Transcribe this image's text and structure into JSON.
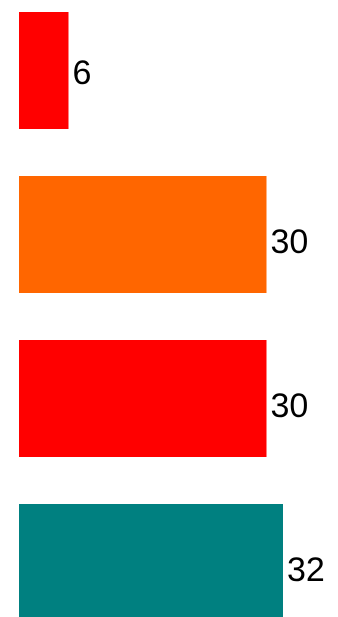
{
  "chart_data": {
    "type": "bar",
    "orientation": "horizontal",
    "title": "",
    "xlabel": "",
    "ylabel": "",
    "grid": false,
    "legend": "none",
    "xlim": [
      0,
      32
    ],
    "values": [
      6,
      30,
      30,
      32
    ],
    "data_labels": [
      "6",
      "30",
      "30",
      "32"
    ],
    "colors": [
      "#ff0000",
      "#ff6600",
      "#ff0000",
      "#008080"
    ]
  }
}
